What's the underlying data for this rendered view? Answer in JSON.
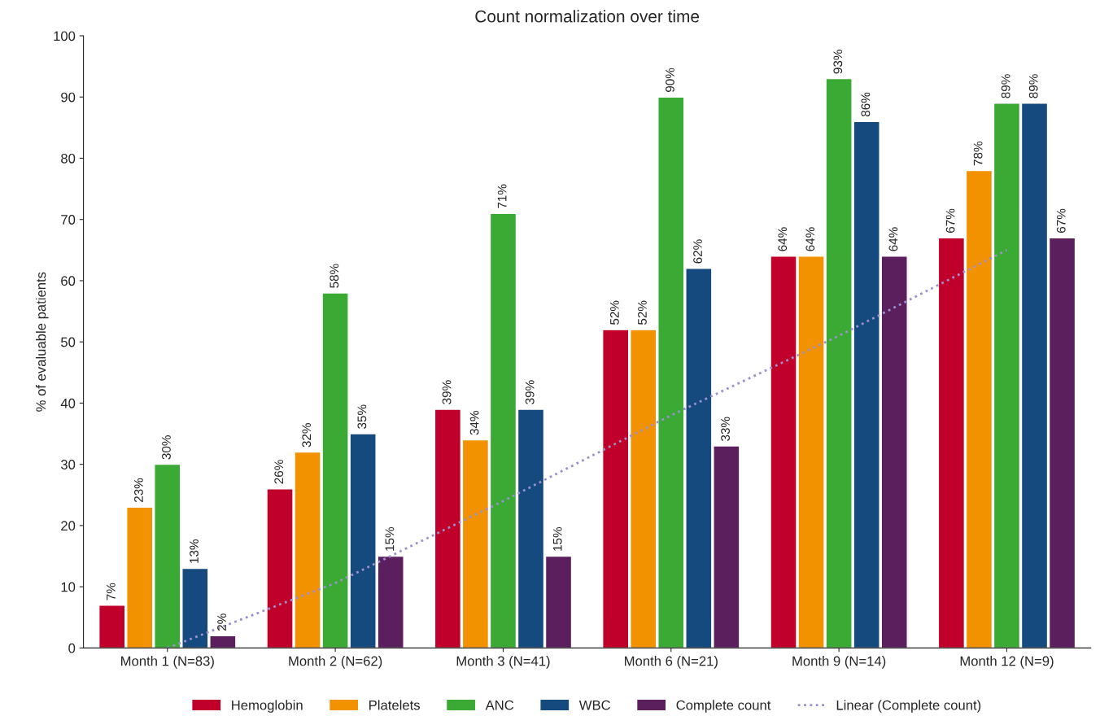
{
  "chart_data": {
    "type": "bar",
    "title": "Count normalization over time",
    "ylabel": "% of evaluable patients",
    "categories": [
      "Month 1 (N=83)",
      "Month 2 (N=62)",
      "Month 3 (N=41)",
      "Month 6 (N=21)",
      "Month 9 (N=14)",
      "Month 12 (N=9)"
    ],
    "series": [
      {
        "name": "Hemoglobin",
        "color": "#c0002a",
        "values": [
          7,
          26,
          39,
          52,
          64,
          67
        ],
        "value_labels": [
          "7%",
          "26%",
          "39%",
          "52%",
          "64%",
          "67%"
        ]
      },
      {
        "name": "Platelets",
        "color": "#f39200",
        "values": [
          23,
          32,
          34,
          52,
          64,
          78
        ],
        "value_labels": [
          "23%",
          "32%",
          "34%",
          "52%",
          "64%",
          "78%"
        ]
      },
      {
        "name": "ANC",
        "color": "#3aaa35",
        "values": [
          30,
          58,
          71,
          90,
          93,
          89
        ],
        "value_labels": [
          "30%",
          "58%",
          "71%",
          "90%",
          "93%",
          "89%"
        ]
      },
      {
        "name": "WBC",
        "color": "#154a7e",
        "values": [
          13,
          35,
          39,
          62,
          86,
          89
        ],
        "value_labels": [
          "13%",
          "35%",
          "39%",
          "62%",
          "86%",
          "89%"
        ]
      },
      {
        "name": "Complete count",
        "color": "#5c1f5e",
        "values": [
          2,
          15,
          15,
          33,
          64,
          67
        ],
        "value_labels": [
          "2%",
          "15%",
          "15%",
          "33%",
          "64%",
          "67%"
        ]
      },
      {
        "name": "Linear (Complete count)",
        "type": "line",
        "color": "#9e8fd0",
        "line_style": "dotted",
        "values": [
          0,
          10.6,
          24,
          38,
          51,
          65
        ]
      }
    ],
    "ylim": [
      0,
      100
    ],
    "yticks": [
      0,
      10,
      20,
      30,
      40,
      50,
      60,
      70,
      80,
      90,
      100
    ],
    "grid": false,
    "legend": "bottom"
  }
}
